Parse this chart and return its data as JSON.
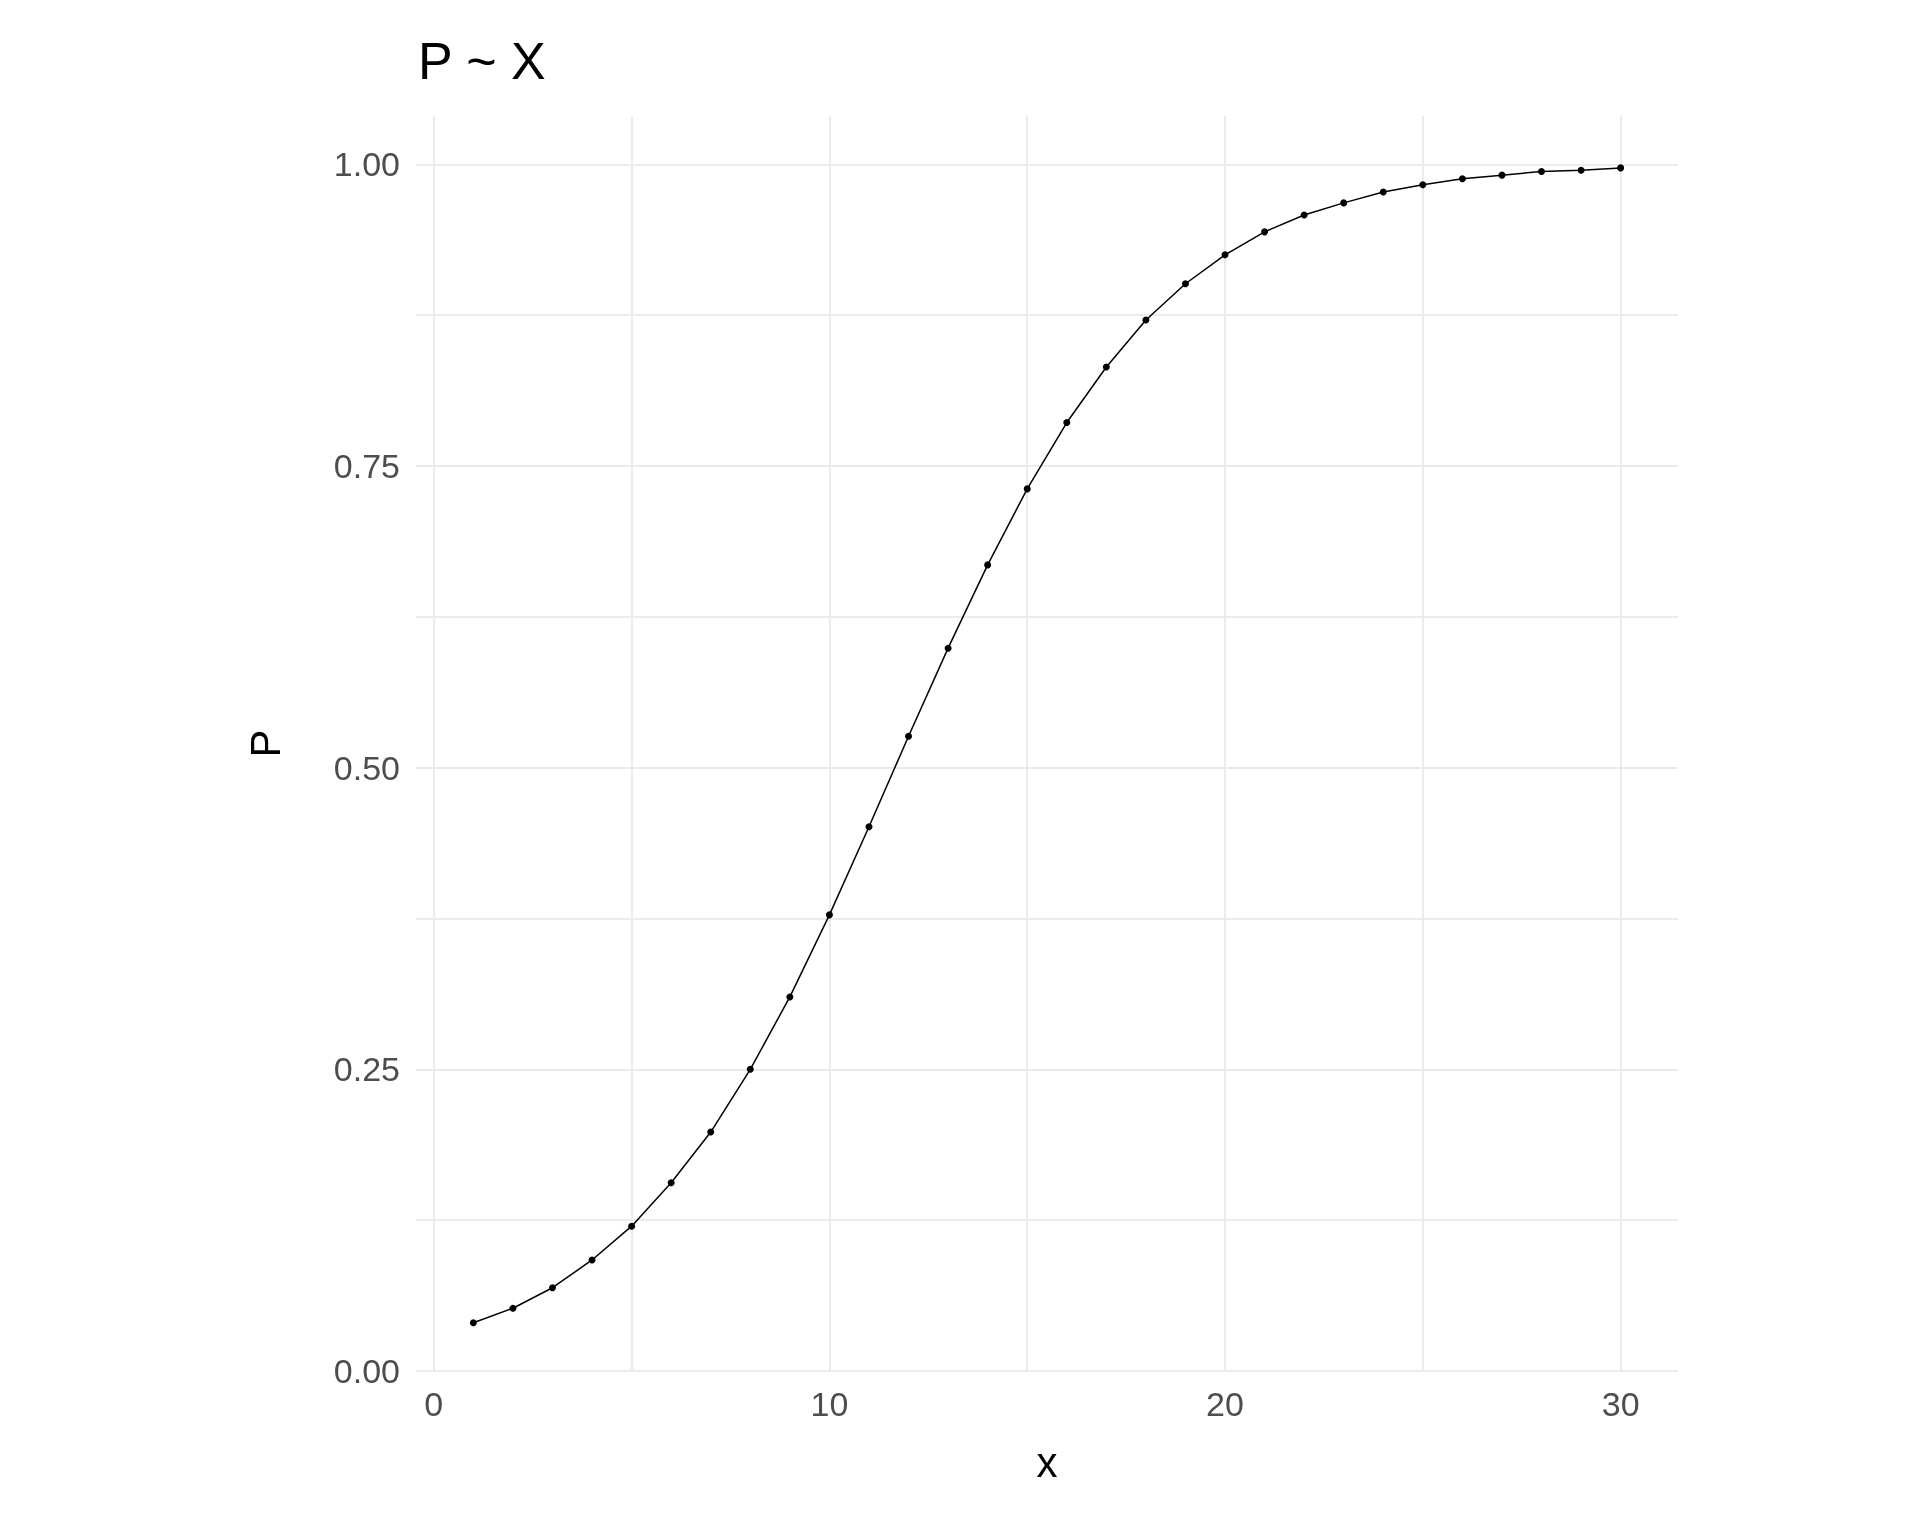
{
  "chart_data": {
    "type": "line",
    "title": "P ~ X",
    "xlabel": "x",
    "ylabel": "P",
    "x": [
      1,
      2,
      3,
      4,
      5,
      6,
      7,
      8,
      9,
      10,
      11,
      12,
      13,
      14,
      15,
      16,
      17,
      18,
      19,
      20,
      21,
      22,
      23,
      24,
      25,
      26,
      27,
      28,
      29,
      30
    ],
    "series": [
      {
        "color": "#000000",
        "values": [
          0.04,
          0.052,
          0.069,
          0.092,
          0.12,
          0.156,
          0.198,
          0.25,
          0.31,
          0.378,
          0.451,
          0.526,
          0.599,
          0.668,
          0.731,
          0.786,
          0.832,
          0.871,
          0.901,
          0.925,
          0.944,
          0.958,
          0.968,
          0.977,
          0.983,
          0.988,
          0.991,
          0.994,
          0.995,
          0.997
        ]
      }
    ],
    "xlim": [
      -0.45,
      31.45
    ],
    "ylim": [
      0,
      1.04
    ],
    "xticks": [
      0,
      {
        "value": 5,
        "label": null
      },
      10,
      {
        "value": 15,
        "label": null
      },
      20,
      {
        "value": 25,
        "label": null
      },
      30
    ],
    "yticks": [
      {
        "value": 0,
        "label": "0.00"
      },
      {
        "value": 0.125,
        "label": null
      },
      {
        "value": 0.25,
        "label": "0.25"
      },
      {
        "value": 0.375,
        "label": null
      },
      {
        "value": 0.5,
        "label": "0.50"
      },
      {
        "value": 0.625,
        "label": null
      },
      {
        "value": 0.75,
        "label": "0.75"
      },
      {
        "value": 0.875,
        "label": null
      },
      {
        "value": 1,
        "label": "1.00"
      }
    ],
    "grid": true,
    "marker": "circle",
    "line_style": "solid"
  }
}
